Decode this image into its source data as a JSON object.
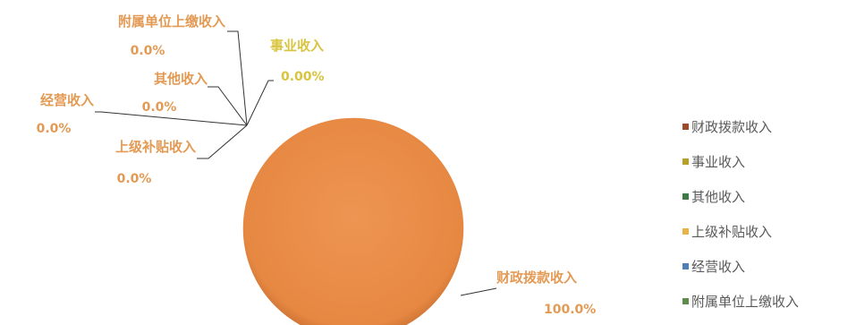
{
  "chart_data": {
    "type": "pie",
    "slices": [
      {
        "label": "财政拨款收入",
        "value": 100.0,
        "value_label": "100.0%",
        "color": "#9b4a2a"
      },
      {
        "label": "事业收入",
        "value": 0.0,
        "value_label": "0.00%",
        "color": "#b6a02a"
      },
      {
        "label": "其他收入",
        "value": 0.0,
        "value_label": "0.0%",
        "color": "#3e7a46"
      },
      {
        "label": "上级补贴收入",
        "value": 0.0,
        "value_label": "0.0%",
        "color": "#e7b44a"
      },
      {
        "label": "经营收入",
        "value": 0.0,
        "value_label": "0.0%",
        "color": "#4d7fb6"
      },
      {
        "label": "附属单位上缴收入",
        "value": 0.0,
        "value_label": "0.0%",
        "color": "#5e8c4a"
      }
    ],
    "data_label_color": "#e39a54",
    "highlight_label_color": "#d8c43e",
    "pie_color": "#e88b47",
    "leader_line_color": "#333333",
    "legend_position": "right"
  },
  "legend": {
    "items": [
      {
        "label": "财政拨款收入",
        "color": "#9b4a2a"
      },
      {
        "label": "事业收入",
        "color": "#b6a02a"
      },
      {
        "label": "其他收入",
        "color": "#3e7a46"
      },
      {
        "label": "上级补贴收入",
        "color": "#e7b44a"
      },
      {
        "label": "经营收入",
        "color": "#4d7fb6"
      },
      {
        "label": "附属单位上缴收入",
        "color": "#5e8c4a"
      }
    ]
  }
}
